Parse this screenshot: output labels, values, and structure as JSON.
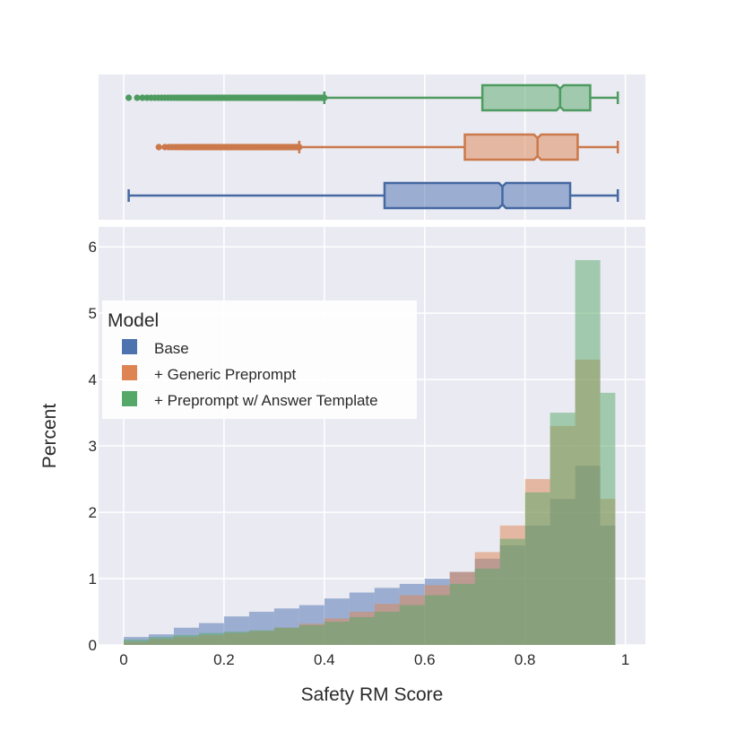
{
  "chart_data": {
    "type": "histogram",
    "xlabel": "Safety RM Score",
    "ylabel": "Percent",
    "xlim": [
      -0.05,
      1.04
    ],
    "ylim": [
      0,
      6.3
    ],
    "x_ticks": [
      0,
      0.2,
      0.4,
      0.6,
      0.8,
      1
    ],
    "x_tick_labels": [
      "0",
      "0.2",
      "0.4",
      "0.6",
      "0.8",
      "1"
    ],
    "y_ticks": [
      0,
      1,
      2,
      3,
      4,
      5,
      6
    ],
    "y_tick_labels": [
      "0",
      "1",
      "2",
      "3",
      "4",
      "5",
      "6"
    ],
    "grid": true,
    "legend": {
      "title": "Model",
      "placement": "middle-left"
    },
    "series": [
      {
        "name": "Base",
        "color": "#4c72b0",
        "box": {
          "whisker_low": 0.01,
          "q1": 0.52,
          "median": 0.755,
          "q3": 0.89,
          "whisker_high": 0.985,
          "outliers_from": null,
          "outliers_to": null
        },
        "hist": [
          {
            "x0": 0.0,
            "x1": 0.05,
            "percent": 0.12
          },
          {
            "x0": 0.05,
            "x1": 0.1,
            "percent": 0.16
          },
          {
            "x0": 0.1,
            "x1": 0.15,
            "percent": 0.26
          },
          {
            "x0": 0.15,
            "x1": 0.2,
            "percent": 0.33
          },
          {
            "x0": 0.2,
            "x1": 0.25,
            "percent": 0.43
          },
          {
            "x0": 0.25,
            "x1": 0.3,
            "percent": 0.5
          },
          {
            "x0": 0.3,
            "x1": 0.35,
            "percent": 0.55
          },
          {
            "x0": 0.35,
            "x1": 0.4,
            "percent": 0.6
          },
          {
            "x0": 0.4,
            "x1": 0.45,
            "percent": 0.7
          },
          {
            "x0": 0.45,
            "x1": 0.5,
            "percent": 0.79
          },
          {
            "x0": 0.5,
            "x1": 0.55,
            "percent": 0.86
          },
          {
            "x0": 0.55,
            "x1": 0.6,
            "percent": 0.92
          },
          {
            "x0": 0.6,
            "x1": 0.65,
            "percent": 1.0
          },
          {
            "x0": 0.65,
            "x1": 0.7,
            "percent": 1.1
          },
          {
            "x0": 0.7,
            "x1": 0.75,
            "percent": 1.3
          },
          {
            "x0": 0.75,
            "x1": 0.8,
            "percent": 1.5
          },
          {
            "x0": 0.8,
            "x1": 0.85,
            "percent": 1.8
          },
          {
            "x0": 0.85,
            "x1": 0.9,
            "percent": 2.2
          },
          {
            "x0": 0.9,
            "x1": 0.95,
            "percent": 2.7
          },
          {
            "x0": 0.95,
            "x1": 0.98,
            "percent": 1.8
          }
        ]
      },
      {
        "name": "+ Generic Preprompt",
        "color": "#dd8452",
        "box": {
          "whisker_low": 0.35,
          "q1": 0.68,
          "median": 0.825,
          "q3": 0.905,
          "whisker_high": 0.985,
          "outliers_from": 0.07,
          "outliers_to": 0.35
        },
        "hist": [
          {
            "x0": 0.0,
            "x1": 0.05,
            "percent": 0.05
          },
          {
            "x0": 0.05,
            "x1": 0.1,
            "percent": 0.09
          },
          {
            "x0": 0.1,
            "x1": 0.15,
            "percent": 0.12
          },
          {
            "x0": 0.15,
            "x1": 0.2,
            "percent": 0.15
          },
          {
            "x0": 0.2,
            "x1": 0.25,
            "percent": 0.18
          },
          {
            "x0": 0.25,
            "x1": 0.3,
            "percent": 0.21
          },
          {
            "x0": 0.3,
            "x1": 0.35,
            "percent": 0.26
          },
          {
            "x0": 0.35,
            "x1": 0.4,
            "percent": 0.32
          },
          {
            "x0": 0.4,
            "x1": 0.45,
            "percent": 0.4
          },
          {
            "x0": 0.45,
            "x1": 0.5,
            "percent": 0.5
          },
          {
            "x0": 0.5,
            "x1": 0.55,
            "percent": 0.62
          },
          {
            "x0": 0.55,
            "x1": 0.6,
            "percent": 0.75
          },
          {
            "x0": 0.6,
            "x1": 0.65,
            "percent": 0.9
          },
          {
            "x0": 0.65,
            "x1": 0.7,
            "percent": 1.1
          },
          {
            "x0": 0.7,
            "x1": 0.75,
            "percent": 1.4
          },
          {
            "x0": 0.75,
            "x1": 0.8,
            "percent": 1.8
          },
          {
            "x0": 0.8,
            "x1": 0.85,
            "percent": 2.5
          },
          {
            "x0": 0.85,
            "x1": 0.9,
            "percent": 3.3
          },
          {
            "x0": 0.9,
            "x1": 0.95,
            "percent": 4.3
          },
          {
            "x0": 0.95,
            "x1": 0.98,
            "percent": 2.2
          }
        ]
      },
      {
        "name": "+ Preprompt w/ Answer Template",
        "color": "#55a868",
        "box": {
          "whisker_low": 0.4,
          "q1": 0.715,
          "median": 0.87,
          "q3": 0.93,
          "whisker_high": 0.985,
          "outliers_from": 0.01,
          "outliers_to": 0.4
        },
        "hist": [
          {
            "x0": 0.0,
            "x1": 0.05,
            "percent": 0.08
          },
          {
            "x0": 0.05,
            "x1": 0.1,
            "percent": 0.12
          },
          {
            "x0": 0.1,
            "x1": 0.15,
            "percent": 0.15
          },
          {
            "x0": 0.15,
            "x1": 0.2,
            "percent": 0.18
          },
          {
            "x0": 0.2,
            "x1": 0.25,
            "percent": 0.2
          },
          {
            "x0": 0.25,
            "x1": 0.3,
            "percent": 0.22
          },
          {
            "x0": 0.3,
            "x1": 0.35,
            "percent": 0.26
          },
          {
            "x0": 0.35,
            "x1": 0.4,
            "percent": 0.3
          },
          {
            "x0": 0.4,
            "x1": 0.45,
            "percent": 0.35
          },
          {
            "x0": 0.45,
            "x1": 0.5,
            "percent": 0.42
          },
          {
            "x0": 0.5,
            "x1": 0.55,
            "percent": 0.5
          },
          {
            "x0": 0.55,
            "x1": 0.6,
            "percent": 0.6
          },
          {
            "x0": 0.6,
            "x1": 0.65,
            "percent": 0.75
          },
          {
            "x0": 0.65,
            "x1": 0.7,
            "percent": 0.92
          },
          {
            "x0": 0.7,
            "x1": 0.75,
            "percent": 1.15
          },
          {
            "x0": 0.75,
            "x1": 0.8,
            "percent": 1.6
          },
          {
            "x0": 0.8,
            "x1": 0.85,
            "percent": 2.3
          },
          {
            "x0": 0.85,
            "x1": 0.9,
            "percent": 3.5
          },
          {
            "x0": 0.9,
            "x1": 0.95,
            "percent": 5.8
          },
          {
            "x0": 0.95,
            "x1": 0.98,
            "percent": 3.8
          }
        ]
      }
    ]
  }
}
